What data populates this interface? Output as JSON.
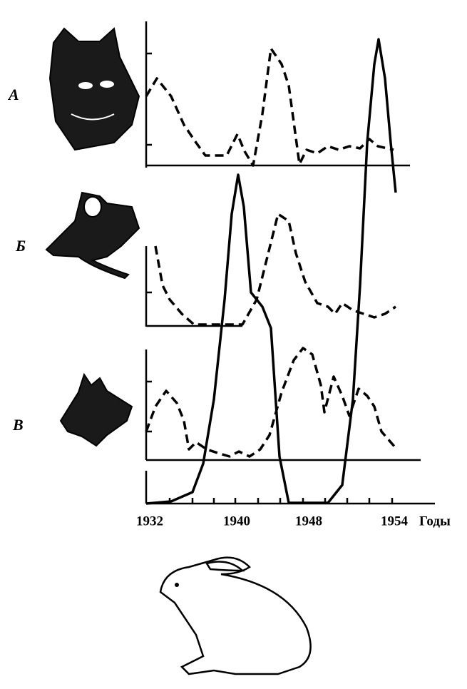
{
  "labels": {
    "a": "А",
    "b": "Б",
    "v": "В"
  },
  "x_axis": {
    "ticks": [
      "1932",
      "1940",
      "1948",
      "1954"
    ],
    "unit": "Годы"
  }
}
